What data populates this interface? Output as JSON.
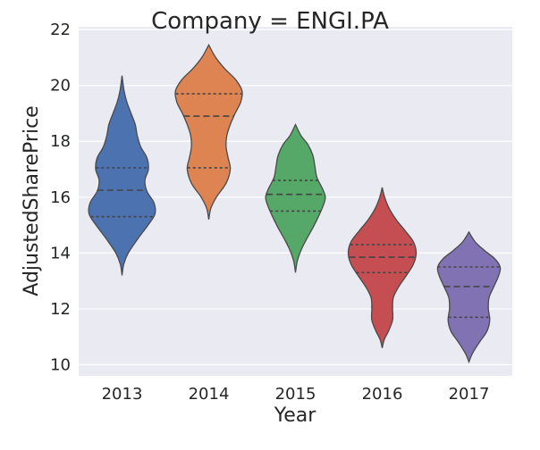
{
  "chart_data": {
    "type": "violin",
    "title": "Company = ENGI.PA",
    "xlabel": "Year",
    "ylabel": "AdjustedSharePrice",
    "categories": [
      "2013",
      "2014",
      "2015",
      "2016",
      "2017"
    ],
    "ylim": [
      9.6,
      22.1
    ],
    "yticks": [
      10,
      12,
      14,
      16,
      18,
      20,
      22
    ],
    "grid": true,
    "background": "#eaeaf2",
    "colors": [
      "#4c72b0",
      "#dd8452",
      "#55a868",
      "#c44e52",
      "#8172b3"
    ],
    "series": [
      {
        "category": "2013",
        "range": [
          13.2,
          20.35
        ],
        "quartiles": [
          15.3,
          16.25,
          17.05
        ],
        "profile": [
          [
            13.2,
            0.0
          ],
          [
            13.6,
            0.05
          ],
          [
            14.0,
            0.18
          ],
          [
            14.5,
            0.45
          ],
          [
            15.0,
            0.75
          ],
          [
            15.4,
            0.95
          ],
          [
            15.8,
            0.92
          ],
          [
            16.2,
            0.72
          ],
          [
            16.6,
            0.66
          ],
          [
            17.0,
            0.76
          ],
          [
            17.4,
            0.72
          ],
          [
            17.8,
            0.54
          ],
          [
            18.2,
            0.44
          ],
          [
            18.6,
            0.38
          ],
          [
            19.0,
            0.26
          ],
          [
            19.4,
            0.14
          ],
          [
            19.8,
            0.06
          ],
          [
            20.35,
            0.0
          ]
        ]
      },
      {
        "category": "2014",
        "range": [
          15.2,
          21.45
        ],
        "quartiles": [
          17.05,
          18.9,
          19.7
        ],
        "profile": [
          [
            15.2,
            0.0
          ],
          [
            15.6,
            0.06
          ],
          [
            16.0,
            0.22
          ],
          [
            16.5,
            0.5
          ],
          [
            17.0,
            0.62
          ],
          [
            17.4,
            0.56
          ],
          [
            17.8,
            0.5
          ],
          [
            18.2,
            0.52
          ],
          [
            18.6,
            0.62
          ],
          [
            19.0,
            0.76
          ],
          [
            19.4,
            0.92
          ],
          [
            19.8,
            0.96
          ],
          [
            20.2,
            0.78
          ],
          [
            20.6,
            0.46
          ],
          [
            21.0,
            0.2
          ],
          [
            21.45,
            0.0
          ]
        ]
      },
      {
        "category": "2015",
        "range": [
          13.3,
          18.6
        ],
        "quartiles": [
          15.5,
          16.1,
          16.6
        ],
        "profile": [
          [
            13.3,
            0.0
          ],
          [
            13.7,
            0.05
          ],
          [
            14.1,
            0.16
          ],
          [
            14.5,
            0.32
          ],
          [
            14.9,
            0.5
          ],
          [
            15.3,
            0.66
          ],
          [
            15.7,
            0.8
          ],
          [
            16.0,
            0.86
          ],
          [
            16.3,
            0.78
          ],
          [
            16.7,
            0.62
          ],
          [
            17.1,
            0.56
          ],
          [
            17.5,
            0.5
          ],
          [
            17.9,
            0.35
          ],
          [
            18.2,
            0.16
          ],
          [
            18.6,
            0.0
          ]
        ]
      },
      {
        "category": "2016",
        "range": [
          10.6,
          16.35
        ],
        "quartiles": [
          13.3,
          13.85,
          14.3
        ],
        "profile": [
          [
            10.6,
            0.0
          ],
          [
            10.9,
            0.06
          ],
          [
            11.2,
            0.18
          ],
          [
            11.6,
            0.3
          ],
          [
            12.0,
            0.3
          ],
          [
            12.4,
            0.32
          ],
          [
            12.8,
            0.48
          ],
          [
            13.2,
            0.7
          ],
          [
            13.6,
            0.9
          ],
          [
            14.0,
            0.98
          ],
          [
            14.4,
            0.9
          ],
          [
            14.8,
            0.66
          ],
          [
            15.2,
            0.4
          ],
          [
            15.6,
            0.2
          ],
          [
            16.0,
            0.07
          ],
          [
            16.35,
            0.0
          ]
        ]
      },
      {
        "category": "2017",
        "range": [
          10.1,
          14.75
        ],
        "quartiles": [
          11.7,
          12.8,
          13.5
        ],
        "profile": [
          [
            10.1,
            0.0
          ],
          [
            10.4,
            0.1
          ],
          [
            10.8,
            0.3
          ],
          [
            11.2,
            0.52
          ],
          [
            11.6,
            0.6
          ],
          [
            12.0,
            0.56
          ],
          [
            12.4,
            0.58
          ],
          [
            12.8,
            0.72
          ],
          [
            13.2,
            0.86
          ],
          [
            13.5,
            0.9
          ],
          [
            13.8,
            0.74
          ],
          [
            14.1,
            0.44
          ],
          [
            14.4,
            0.18
          ],
          [
            14.75,
            0.0
          ]
        ]
      }
    ]
  }
}
